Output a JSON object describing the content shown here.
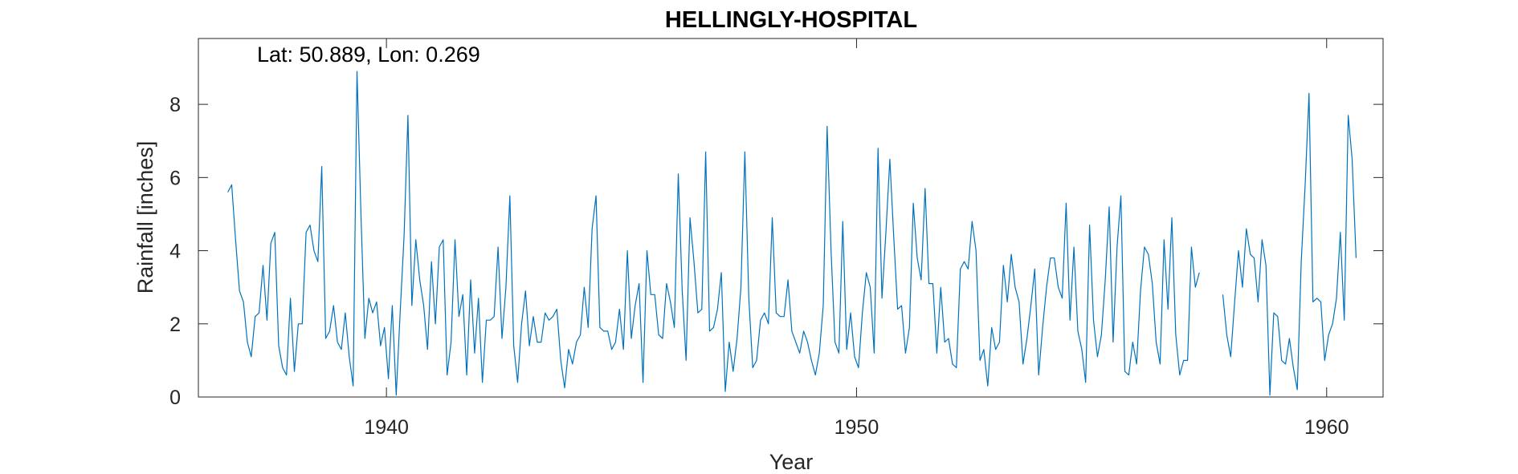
{
  "chart_data": {
    "type": "line",
    "title": "HELLINGLY-HOSPITAL",
    "annotation": "Lat: 50.889, Lon: 0.269",
    "xlabel": "Year",
    "ylabel": "Rainfall [inches]",
    "xlim": [
      1936,
      1961.2
    ],
    "ylim": [
      0,
      9.8
    ],
    "xticks": [
      1940,
      1950,
      1960
    ],
    "yticks": [
      0,
      2,
      4,
      6,
      8
    ],
    "grid": false,
    "legend": "none",
    "line_color": "#0072BD",
    "series": [
      {
        "x_start": 1936.625,
        "x_step": 0.08333,
        "values": [
          5.6,
          5.8,
          4.3,
          2.9,
          2.6,
          1.5,
          1.1,
          2.2,
          2.3,
          3.6,
          2.1,
          4.2,
          4.5,
          1.4,
          0.8,
          0.6,
          2.7,
          0.7,
          2.0,
          2.0,
          4.5,
          4.7,
          4.0,
          3.7,
          6.3,
          1.6,
          1.8,
          2.5,
          1.5,
          1.3,
          2.3,
          1.1,
          0.3,
          8.9,
          5.0,
          1.6,
          2.7,
          2.3,
          2.6,
          1.4,
          1.9,
          0.5,
          2.5,
          0.05,
          2.3,
          4.4,
          7.7,
          2.5,
          4.3,
          3.2,
          2.5,
          1.3,
          3.7,
          2.0,
          4.1,
          4.3,
          0.6,
          1.5,
          4.3,
          2.2,
          2.8,
          0.6,
          3.2,
          1.2,
          2.7,
          0.4,
          2.1,
          2.1,
          2.2,
          4.1,
          1.6,
          3.0,
          5.5,
          1.4,
          0.4,
          2.0,
          2.9,
          1.4,
          2.2,
          1.5,
          1.5,
          2.3,
          2.1,
          2.2,
          2.4,
          1.0,
          0.25,
          1.3,
          0.9,
          1.5,
          1.7,
          3.0,
          1.9,
          4.6,
          5.5,
          1.9,
          1.8,
          1.8,
          1.3,
          1.5,
          2.4,
          1.3,
          4.0,
          1.6,
          2.5,
          3.1,
          0.4,
          4.0,
          2.8,
          2.8,
          1.7,
          1.6,
          3.1,
          2.6,
          1.9,
          6.1,
          2.9,
          1.0,
          4.9,
          3.7,
          2.3,
          2.4,
          6.7,
          1.8,
          1.9,
          2.4,
          3.4,
          0.15,
          1.5,
          0.7,
          1.6,
          3.0,
          6.7,
          2.7,
          0.8,
          1.0,
          2.1,
          2.3,
          2.0,
          4.9,
          2.3,
          2.2,
          2.2,
          3.2,
          1.8,
          1.5,
          1.2,
          1.8,
          1.5,
          1.0,
          0.6,
          1.2,
          2.5,
          7.4,
          4.0,
          1.5,
          1.2,
          4.8,
          1.3,
          2.3,
          1.1,
          0.8,
          2.3,
          3.4,
          3.0,
          1.2,
          6.8,
          2.7,
          4.5,
          6.5,
          4.4,
          2.4,
          2.5,
          1.2,
          1.9,
          5.3,
          3.8,
          3.2,
          5.7,
          3.1,
          3.1,
          1.2,
          3.0,
          1.5,
          1.6,
          0.9,
          0.8,
          3.5,
          3.7,
          3.5,
          4.8,
          4.0,
          1.0,
          1.3,
          0.3,
          1.9,
          1.3,
          1.5,
          3.6,
          2.6,
          3.9,
          3.0,
          2.6,
          0.9,
          1.6,
          2.5,
          3.5,
          0.6,
          1.9,
          3.0,
          3.8,
          3.8,
          3.0,
          2.7,
          5.3,
          2.1,
          4.1,
          1.8,
          1.3,
          0.4,
          4.7,
          2.1,
          1.1,
          1.7,
          3.2,
          5.2,
          1.5,
          4.1,
          5.5,
          0.7,
          0.6,
          1.5,
          0.9,
          2.9,
          4.1,
          3.9,
          3.1,
          1.5,
          0.9,
          4.3,
          2.4,
          4.9,
          1.7,
          0.6,
          1.0,
          1.0,
          4.1,
          3.0,
          3.4
        ]
      },
      {
        "x_start": 1957.792,
        "x_step": 0.08333,
        "values": [
          2.8,
          1.7,
          1.1,
          2.6,
          4.0,
          3.0,
          4.6,
          3.9,
          3.8,
          2.6,
          4.3,
          3.6,
          0.05,
          2.3,
          2.2,
          1.0,
          0.9,
          1.6,
          0.8,
          0.2,
          3.7,
          5.8,
          8.3,
          2.6,
          2.7,
          2.6,
          1.0,
          1.7,
          2.0,
          2.7,
          4.5,
          2.1,
          7.7,
          6.5,
          3.8
        ]
      }
    ]
  }
}
